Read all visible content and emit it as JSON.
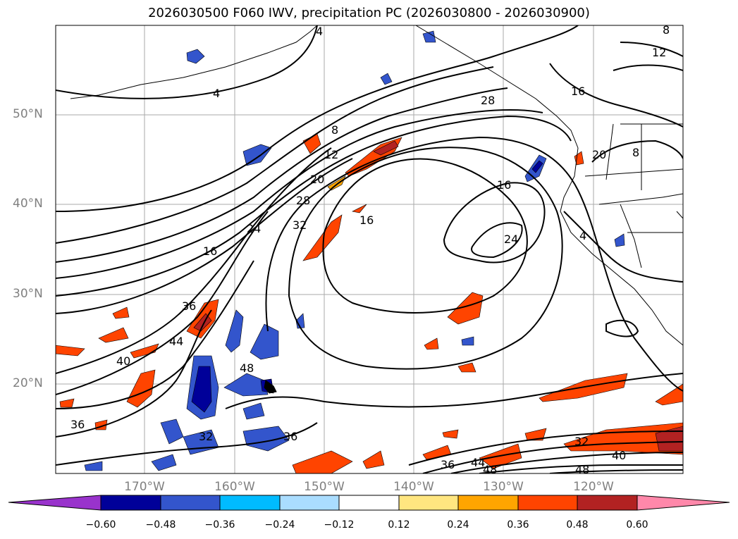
{
  "title": "2026030500 F060 IWV, precipitation PC (2026030800 - 2026030900)",
  "lat_labels": [
    "50°N",
    "40°N",
    "30°N",
    "20°N"
  ],
  "lon_labels": [
    "170°W",
    "160°W",
    "150°W",
    "140°W",
    "130°W",
    "120°W"
  ],
  "contour_labels": [
    "4",
    "4",
    "4",
    "8",
    "8",
    "8",
    "12",
    "12",
    "16",
    "16",
    "16",
    "16",
    "20",
    "20",
    "24",
    "24",
    "28",
    "28",
    "32",
    "32",
    "32",
    "36",
    "36",
    "36",
    "36",
    "40",
    "40",
    "44",
    "44",
    "48",
    "48",
    "48"
  ],
  "colorbar": {
    "ticks": [
      "−0.60",
      "−0.48",
      "−0.36",
      "−0.24",
      "−0.12",
      "0.12",
      "0.24",
      "0.36",
      "0.48",
      "0.60"
    ],
    "colors": [
      "#9933cc",
      "#000099",
      "#3355cc",
      "#00bbff",
      "#aaddff",
      "#ffffff",
      "#ffe680",
      "#ffa500",
      "#ff4400",
      "#b22222",
      "#ff88aa"
    ]
  }
}
